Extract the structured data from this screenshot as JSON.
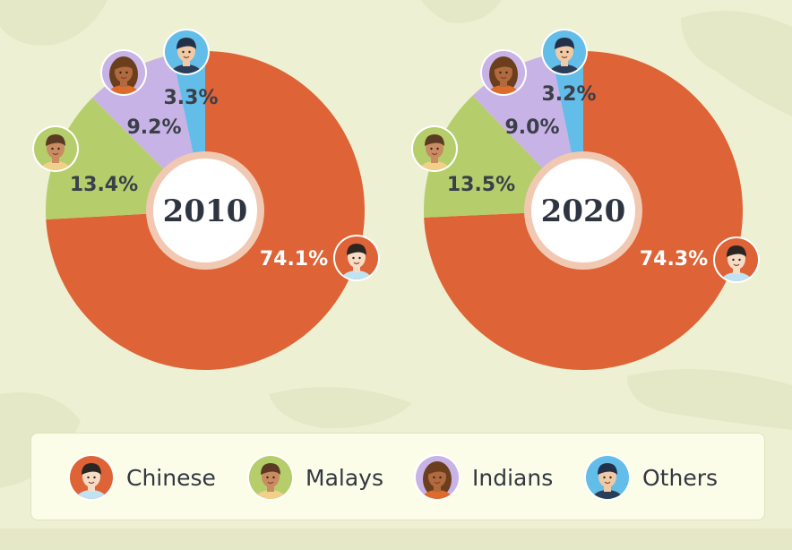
{
  "colors": {
    "chinese": "#de6336",
    "malays": "#b6cd6c",
    "indians": "#c8b3e6",
    "others": "#63bde9"
  },
  "chart_data": [
    {
      "type": "pie",
      "center_label": "2010",
      "slices": [
        {
          "name": "Chinese",
          "value": 74.1,
          "label": "74.1%"
        },
        {
          "name": "Malays",
          "value": 13.4,
          "label": "13.4%"
        },
        {
          "name": "Indians",
          "value": 9.2,
          "label": "9.2%"
        },
        {
          "name": "Others",
          "value": 3.3,
          "label": "3.3%"
        }
      ]
    },
    {
      "type": "pie",
      "center_label": "2020",
      "slices": [
        {
          "name": "Chinese",
          "value": 74.3,
          "label": "74.3%"
        },
        {
          "name": "Malays",
          "value": 13.5,
          "label": "13.5%"
        },
        {
          "name": "Indians",
          "value": 9.0,
          "label": "9.0%"
        },
        {
          "name": "Others",
          "value": 3.2,
          "label": "3.2%"
        }
      ]
    }
  ],
  "legend": [
    {
      "key": "chinese",
      "label": "Chinese",
      "icon": "chinese-person-icon"
    },
    {
      "key": "malays",
      "label": "Malays",
      "icon": "malay-person-icon"
    },
    {
      "key": "indians",
      "label": "Indians",
      "icon": "indian-person-icon"
    },
    {
      "key": "others",
      "label": "Others",
      "icon": "other-person-icon"
    }
  ]
}
